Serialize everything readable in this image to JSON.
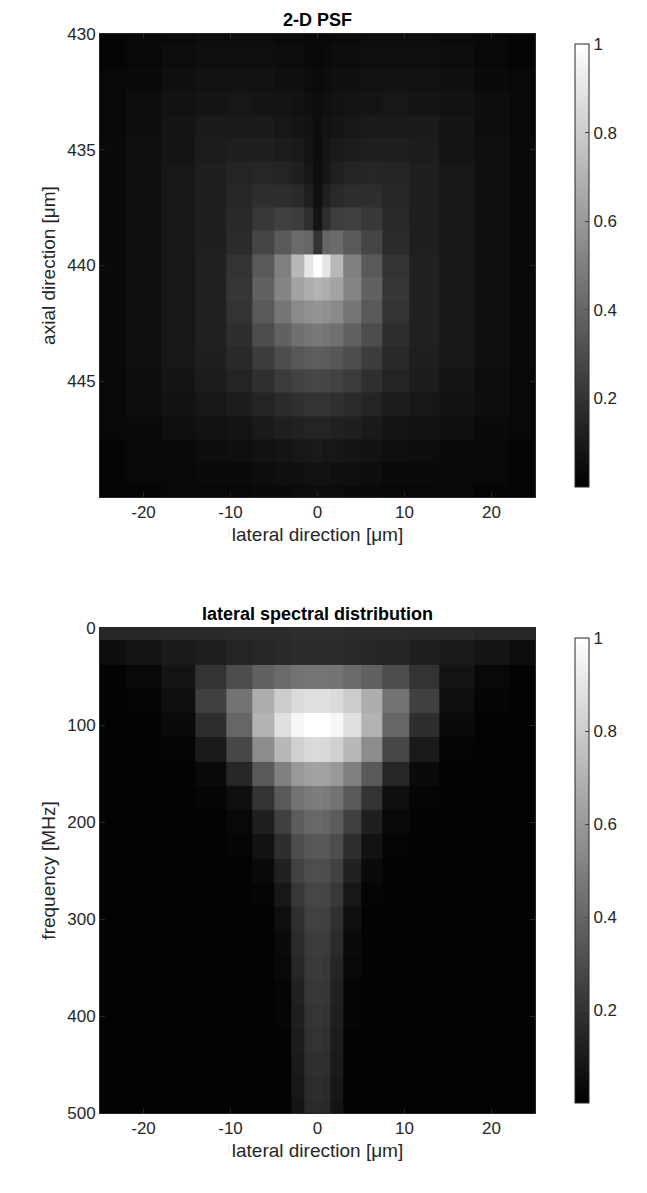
{
  "chart_data": [
    {
      "type": "heatmap",
      "title": "2-D PSF",
      "x_label": "lateral direction [μm]",
      "y_label": "axial direction [μm]",
      "x": [
        -24,
        -20,
        -16,
        -12,
        -9,
        -6,
        -4,
        -2,
        -1,
        0,
        1,
        2,
        4,
        6,
        9,
        12,
        16,
        20,
        24
      ],
      "y": [
        430,
        431,
        432,
        433,
        434,
        435,
        436,
        437,
        438,
        439,
        440,
        441,
        442,
        443,
        444,
        445,
        446,
        447,
        448,
        449,
        450
      ],
      "z": [
        [
          0.02,
          0.03,
          0.04,
          0.05,
          0.05,
          0.05,
          0.04,
          0.04,
          0.03,
          0.03,
          0.03,
          0.04,
          0.04,
          0.05,
          0.05,
          0.05,
          0.04,
          0.03,
          0.02
        ],
        [
          0.02,
          0.03,
          0.05,
          0.06,
          0.06,
          0.06,
          0.05,
          0.05,
          0.04,
          0.03,
          0.04,
          0.05,
          0.05,
          0.06,
          0.06,
          0.06,
          0.05,
          0.03,
          0.02
        ],
        [
          0.03,
          0.04,
          0.06,
          0.07,
          0.07,
          0.07,
          0.06,
          0.06,
          0.05,
          0.04,
          0.05,
          0.06,
          0.06,
          0.07,
          0.07,
          0.07,
          0.06,
          0.04,
          0.03
        ],
        [
          0.03,
          0.05,
          0.07,
          0.08,
          0.09,
          0.08,
          0.08,
          0.07,
          0.06,
          0.05,
          0.06,
          0.07,
          0.08,
          0.08,
          0.09,
          0.08,
          0.07,
          0.05,
          0.03
        ],
        [
          0.03,
          0.05,
          0.08,
          0.1,
          0.1,
          0.1,
          0.09,
          0.08,
          0.07,
          0.05,
          0.07,
          0.08,
          0.09,
          0.1,
          0.1,
          0.1,
          0.08,
          0.05,
          0.03
        ],
        [
          0.04,
          0.06,
          0.08,
          0.11,
          0.12,
          0.12,
          0.11,
          0.1,
          0.08,
          0.05,
          0.08,
          0.1,
          0.11,
          0.12,
          0.12,
          0.11,
          0.08,
          0.06,
          0.04
        ],
        [
          0.04,
          0.06,
          0.09,
          0.12,
          0.14,
          0.15,
          0.14,
          0.12,
          0.09,
          0.05,
          0.09,
          0.12,
          0.14,
          0.15,
          0.14,
          0.12,
          0.09,
          0.06,
          0.04
        ],
        [
          0.04,
          0.06,
          0.09,
          0.12,
          0.15,
          0.18,
          0.18,
          0.16,
          0.12,
          0.06,
          0.12,
          0.16,
          0.18,
          0.18,
          0.15,
          0.12,
          0.09,
          0.06,
          0.04
        ],
        [
          0.04,
          0.06,
          0.09,
          0.12,
          0.16,
          0.22,
          0.25,
          0.24,
          0.18,
          0.08,
          0.18,
          0.24,
          0.25,
          0.22,
          0.16,
          0.12,
          0.09,
          0.06,
          0.04
        ],
        [
          0.04,
          0.06,
          0.09,
          0.12,
          0.17,
          0.27,
          0.35,
          0.42,
          0.4,
          0.2,
          0.4,
          0.42,
          0.35,
          0.27,
          0.17,
          0.12,
          0.09,
          0.06,
          0.04
        ],
        [
          0.04,
          0.06,
          0.09,
          0.13,
          0.2,
          0.35,
          0.5,
          0.72,
          0.9,
          1.0,
          0.9,
          0.72,
          0.5,
          0.35,
          0.2,
          0.13,
          0.09,
          0.06,
          0.04
        ],
        [
          0.04,
          0.06,
          0.09,
          0.13,
          0.21,
          0.38,
          0.52,
          0.64,
          0.68,
          0.7,
          0.68,
          0.64,
          0.52,
          0.38,
          0.21,
          0.13,
          0.09,
          0.06,
          0.04
        ],
        [
          0.04,
          0.06,
          0.09,
          0.13,
          0.2,
          0.35,
          0.46,
          0.54,
          0.57,
          0.58,
          0.57,
          0.54,
          0.46,
          0.35,
          0.2,
          0.13,
          0.09,
          0.06,
          0.04
        ],
        [
          0.04,
          0.06,
          0.09,
          0.13,
          0.18,
          0.3,
          0.38,
          0.44,
          0.46,
          0.47,
          0.46,
          0.44,
          0.38,
          0.3,
          0.18,
          0.13,
          0.09,
          0.06,
          0.04
        ],
        [
          0.04,
          0.06,
          0.09,
          0.12,
          0.16,
          0.24,
          0.3,
          0.34,
          0.36,
          0.37,
          0.36,
          0.34,
          0.3,
          0.24,
          0.16,
          0.12,
          0.09,
          0.06,
          0.04
        ],
        [
          0.03,
          0.05,
          0.08,
          0.11,
          0.14,
          0.19,
          0.23,
          0.26,
          0.27,
          0.28,
          0.27,
          0.26,
          0.23,
          0.19,
          0.14,
          0.11,
          0.08,
          0.05,
          0.03
        ],
        [
          0.03,
          0.05,
          0.07,
          0.09,
          0.11,
          0.14,
          0.17,
          0.19,
          0.2,
          0.2,
          0.2,
          0.19,
          0.17,
          0.14,
          0.11,
          0.09,
          0.07,
          0.05,
          0.03
        ],
        [
          0.03,
          0.04,
          0.06,
          0.07,
          0.08,
          0.1,
          0.12,
          0.13,
          0.14,
          0.14,
          0.14,
          0.13,
          0.12,
          0.1,
          0.08,
          0.07,
          0.06,
          0.04,
          0.03
        ],
        [
          0.02,
          0.03,
          0.04,
          0.05,
          0.06,
          0.07,
          0.08,
          0.09,
          0.09,
          0.1,
          0.09,
          0.09,
          0.08,
          0.07,
          0.06,
          0.05,
          0.04,
          0.03,
          0.02
        ],
        [
          0.02,
          0.03,
          0.03,
          0.04,
          0.04,
          0.05,
          0.06,
          0.06,
          0.07,
          0.07,
          0.07,
          0.06,
          0.06,
          0.05,
          0.04,
          0.04,
          0.03,
          0.03,
          0.02
        ],
        [
          0.02,
          0.02,
          0.03,
          0.03,
          0.03,
          0.04,
          0.04,
          0.05,
          0.05,
          0.05,
          0.05,
          0.05,
          0.04,
          0.04,
          0.03,
          0.03,
          0.03,
          0.02,
          0.02
        ]
      ],
      "xlim": [
        -25,
        25
      ],
      "xticks": [
        -20,
        -10,
        0,
        10,
        20
      ],
      "ylim": [
        430,
        450
      ],
      "yticks": [
        430,
        435,
        440,
        445
      ],
      "colorbar_range": [
        0,
        1
      ],
      "colorbar_ticks": [
        0.2,
        0.4,
        0.6,
        0.8,
        1
      ]
    },
    {
      "type": "heatmap",
      "title": "lateral spectral distribution",
      "x_label": "lateral direction [μm]",
      "y_label": "frequency [MHz]",
      "x": [
        -24,
        -20,
        -16,
        -12,
        -9,
        -6,
        -4,
        -2,
        -1,
        0,
        1,
        2,
        4,
        6,
        9,
        12,
        16,
        20,
        24
      ],
      "y": [
        0,
        25,
        50,
        75,
        100,
        125,
        150,
        175,
        200,
        225,
        250,
        275,
        300,
        325,
        350,
        375,
        400,
        425,
        450,
        475,
        500
      ],
      "z": [
        [
          0.15,
          0.15,
          0.16,
          0.16,
          0.17,
          0.17,
          0.17,
          0.18,
          0.18,
          0.18,
          0.18,
          0.18,
          0.17,
          0.17,
          0.17,
          0.16,
          0.16,
          0.15,
          0.15
        ],
        [
          0.05,
          0.08,
          0.1,
          0.12,
          0.14,
          0.15,
          0.16,
          0.17,
          0.17,
          0.17,
          0.17,
          0.17,
          0.16,
          0.15,
          0.14,
          0.12,
          0.1,
          0.08,
          0.05
        ],
        [
          0.01,
          0.03,
          0.08,
          0.2,
          0.3,
          0.38,
          0.42,
          0.45,
          0.46,
          0.46,
          0.46,
          0.45,
          0.42,
          0.38,
          0.3,
          0.2,
          0.08,
          0.03,
          0.01
        ],
        [
          0.01,
          0.02,
          0.06,
          0.25,
          0.45,
          0.68,
          0.8,
          0.86,
          0.88,
          0.88,
          0.88,
          0.86,
          0.8,
          0.68,
          0.45,
          0.25,
          0.06,
          0.02,
          0.01
        ],
        [
          0.01,
          0.01,
          0.04,
          0.18,
          0.4,
          0.7,
          0.88,
          0.97,
          1.0,
          1.0,
          1.0,
          0.97,
          0.88,
          0.7,
          0.4,
          0.18,
          0.04,
          0.01,
          0.01
        ],
        [
          0.01,
          0.01,
          0.02,
          0.1,
          0.28,
          0.55,
          0.72,
          0.82,
          0.85,
          0.86,
          0.85,
          0.82,
          0.72,
          0.55,
          0.28,
          0.1,
          0.02,
          0.01,
          0.01
        ],
        [
          0.01,
          0.01,
          0.01,
          0.04,
          0.15,
          0.35,
          0.5,
          0.6,
          0.63,
          0.64,
          0.63,
          0.6,
          0.5,
          0.35,
          0.15,
          0.04,
          0.01,
          0.01,
          0.01
        ],
        [
          0.01,
          0.01,
          0.01,
          0.02,
          0.06,
          0.2,
          0.35,
          0.45,
          0.48,
          0.49,
          0.48,
          0.45,
          0.35,
          0.2,
          0.06,
          0.02,
          0.01,
          0.01,
          0.01
        ],
        [
          0.01,
          0.01,
          0.01,
          0.01,
          0.03,
          0.12,
          0.25,
          0.36,
          0.4,
          0.41,
          0.4,
          0.36,
          0.25,
          0.12,
          0.03,
          0.01,
          0.01,
          0.01,
          0.01
        ],
        [
          0.01,
          0.01,
          0.01,
          0.01,
          0.02,
          0.07,
          0.18,
          0.3,
          0.34,
          0.35,
          0.34,
          0.3,
          0.18,
          0.07,
          0.02,
          0.01,
          0.01,
          0.01,
          0.01
        ],
        [
          0.01,
          0.01,
          0.01,
          0.01,
          0.01,
          0.04,
          0.13,
          0.26,
          0.3,
          0.31,
          0.3,
          0.26,
          0.13,
          0.04,
          0.01,
          0.01,
          0.01,
          0.01,
          0.01
        ],
        [
          0.01,
          0.01,
          0.01,
          0.01,
          0.01,
          0.02,
          0.09,
          0.22,
          0.27,
          0.28,
          0.27,
          0.22,
          0.09,
          0.02,
          0.01,
          0.01,
          0.01,
          0.01,
          0.01
        ],
        [
          0.01,
          0.01,
          0.01,
          0.01,
          0.01,
          0.01,
          0.06,
          0.19,
          0.25,
          0.26,
          0.25,
          0.19,
          0.06,
          0.01,
          0.01,
          0.01,
          0.01,
          0.01,
          0.01
        ],
        [
          0.01,
          0.01,
          0.01,
          0.01,
          0.01,
          0.01,
          0.04,
          0.17,
          0.23,
          0.24,
          0.23,
          0.17,
          0.04,
          0.01,
          0.01,
          0.01,
          0.01,
          0.01,
          0.01
        ],
        [
          0.01,
          0.01,
          0.01,
          0.01,
          0.01,
          0.01,
          0.03,
          0.15,
          0.22,
          0.23,
          0.22,
          0.15,
          0.03,
          0.01,
          0.01,
          0.01,
          0.01,
          0.01,
          0.01
        ],
        [
          0.01,
          0.01,
          0.01,
          0.01,
          0.01,
          0.01,
          0.02,
          0.13,
          0.21,
          0.22,
          0.21,
          0.13,
          0.02,
          0.01,
          0.01,
          0.01,
          0.01,
          0.01,
          0.01
        ],
        [
          0.01,
          0.01,
          0.01,
          0.01,
          0.01,
          0.01,
          0.02,
          0.12,
          0.2,
          0.21,
          0.2,
          0.12,
          0.02,
          0.01,
          0.01,
          0.01,
          0.01,
          0.01,
          0.01
        ],
        [
          0.01,
          0.01,
          0.01,
          0.01,
          0.01,
          0.01,
          0.01,
          0.11,
          0.19,
          0.2,
          0.19,
          0.11,
          0.01,
          0.01,
          0.01,
          0.01,
          0.01,
          0.01,
          0.01
        ],
        [
          0.01,
          0.01,
          0.01,
          0.01,
          0.01,
          0.01,
          0.01,
          0.1,
          0.18,
          0.19,
          0.18,
          0.1,
          0.01,
          0.01,
          0.01,
          0.01,
          0.01,
          0.01,
          0.01
        ],
        [
          0.01,
          0.01,
          0.01,
          0.01,
          0.01,
          0.01,
          0.01,
          0.09,
          0.17,
          0.18,
          0.17,
          0.09,
          0.01,
          0.01,
          0.01,
          0.01,
          0.01,
          0.01,
          0.01
        ],
        [
          0.01,
          0.01,
          0.01,
          0.01,
          0.01,
          0.01,
          0.01,
          0.08,
          0.16,
          0.17,
          0.16,
          0.08,
          0.01,
          0.01,
          0.01,
          0.01,
          0.01,
          0.01,
          0.01
        ]
      ],
      "xlim": [
        -25,
        25
      ],
      "xticks": [
        -20,
        -10,
        0,
        10,
        20
      ],
      "ylim": [
        0,
        500
      ],
      "yticks": [
        0,
        100,
        200,
        300,
        400,
        500
      ],
      "colorbar_range": [
        0,
        1
      ],
      "colorbar_ticks": [
        0.2,
        0.4,
        0.6,
        0.8,
        1
      ]
    }
  ]
}
